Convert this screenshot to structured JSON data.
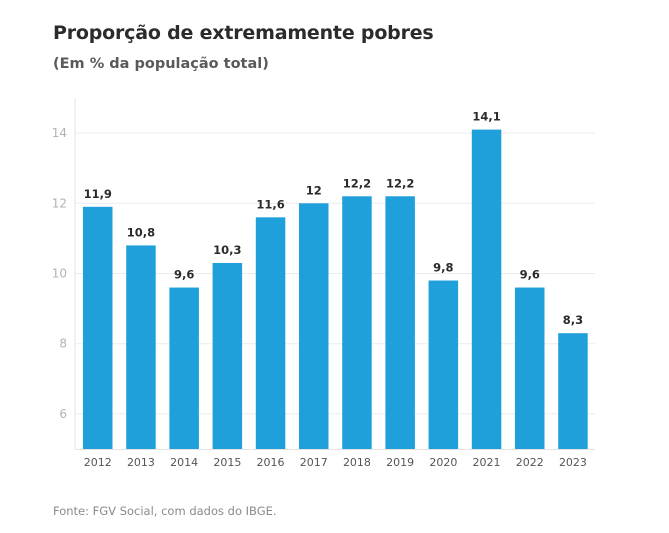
{
  "header": {
    "title": "Proporção de extremamente pobres",
    "subtitle": "(Em % da população total)"
  },
  "footer": {
    "source": "Fonte: FGV Social, com dados do IBGE."
  },
  "colors": {
    "bar": "#20a0da",
    "grid": "#ececec",
    "axis": "#e3e3e3"
  },
  "chart_data": {
    "type": "bar",
    "title": "Proporção de extremamente pobres",
    "subtitle": "(Em % da população total)",
    "xlabel": "",
    "ylabel": "",
    "categories": [
      "2012",
      "2013",
      "2014",
      "2015",
      "2016",
      "2017",
      "2018",
      "2019",
      "2020",
      "2021",
      "2022",
      "2023"
    ],
    "values": [
      11.9,
      10.8,
      9.6,
      10.3,
      11.6,
      12,
      12.2,
      12.2,
      9.8,
      14.1,
      9.6,
      8.3
    ],
    "data_labels": [
      "11,9",
      "10,8",
      "9,6",
      "10,3",
      "11,6",
      "12",
      "12,2",
      "12,2",
      "9,8",
      "14,1",
      "9,6",
      "8,3"
    ],
    "yticks": [
      6,
      8,
      10,
      12,
      14
    ],
    "ytick_labels": [
      "6",
      "8",
      "10",
      "12",
      "14"
    ],
    "ylim": [
      5,
      15
    ],
    "grid": true,
    "legend": "none"
  }
}
